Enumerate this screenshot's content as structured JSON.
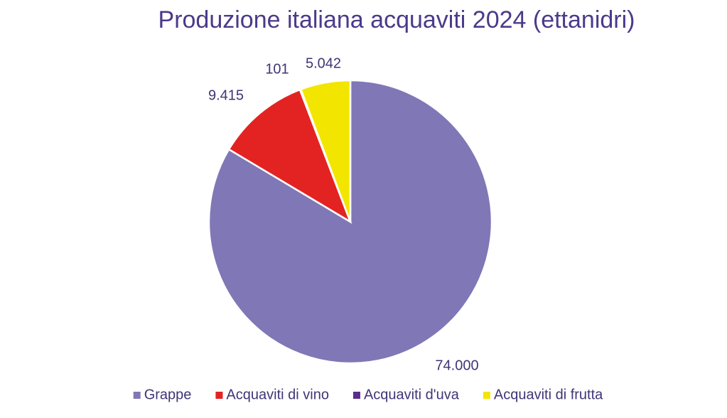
{
  "chart_data": {
    "type": "pie",
    "title": "Produzione italiana acquaviti 2024 (ettanidri)",
    "categories": [
      "Grappe",
      "Acquaviti di vino",
      "Acquaviti d'uva",
      "Acquaviti di frutta"
    ],
    "values": [
      74000,
      9415,
      101,
      5042
    ],
    "value_labels": [
      "74.000",
      "9.415",
      "101",
      "5.042"
    ],
    "colors": [
      "#8077b6",
      "#e32322",
      "#5b2d8e",
      "#f2e600"
    ],
    "legend": "bottom"
  }
}
